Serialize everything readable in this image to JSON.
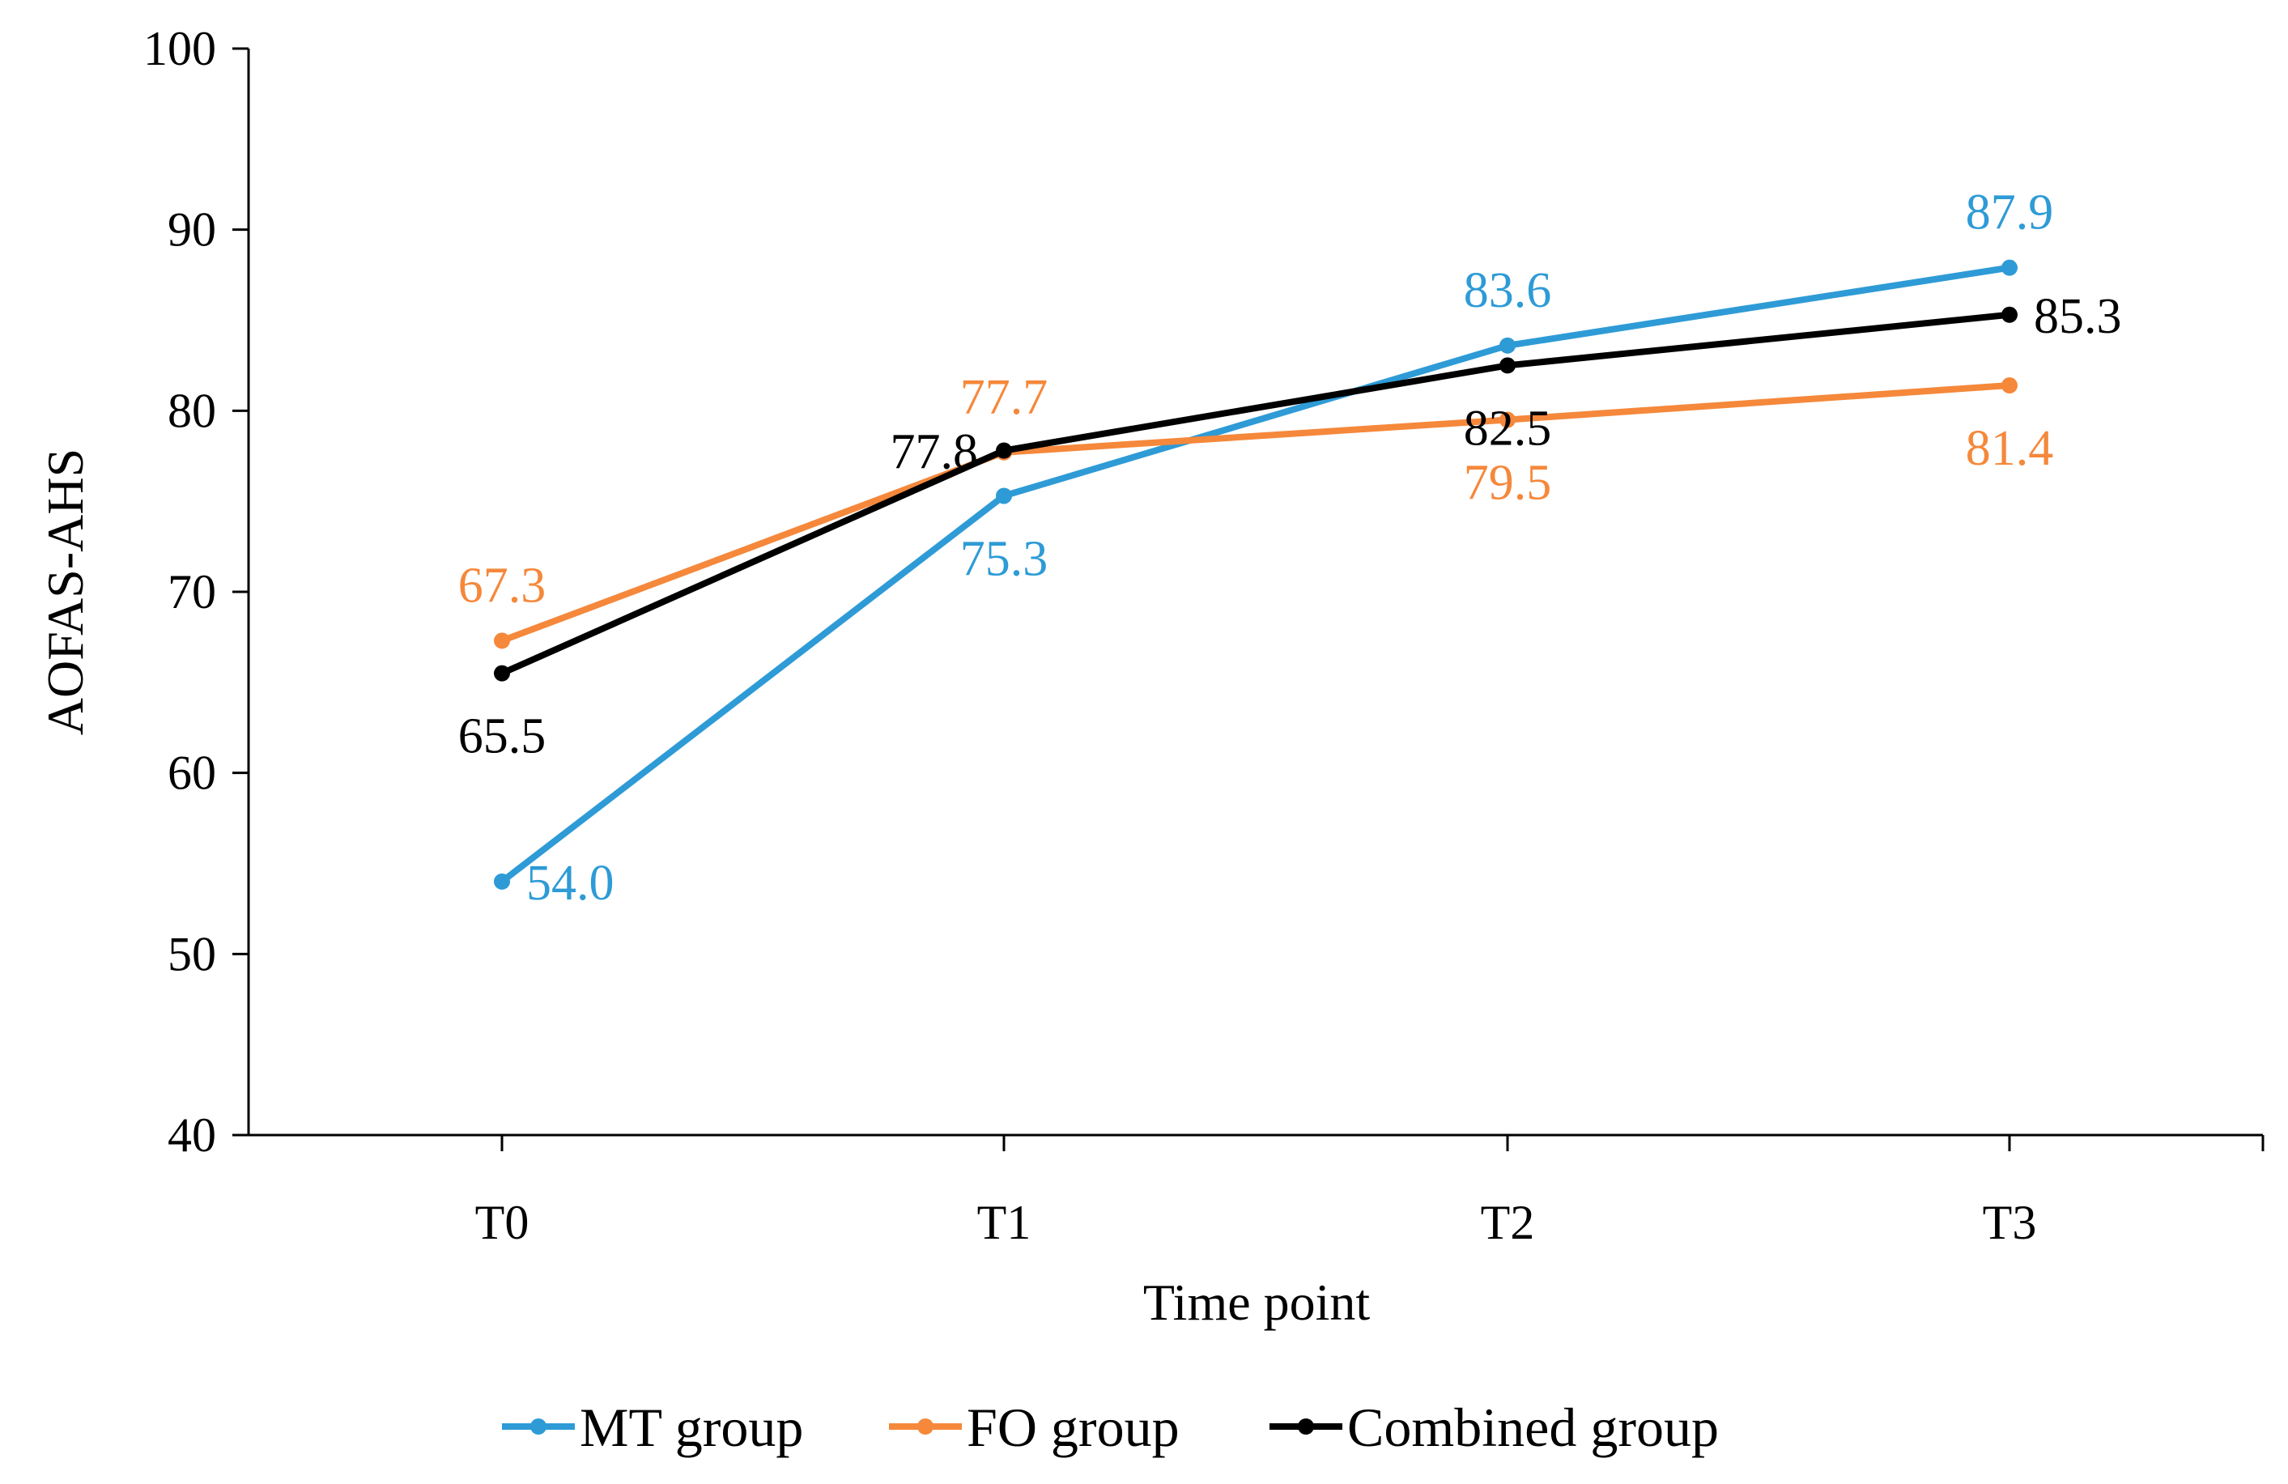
{
  "chart_data": {
    "type": "line",
    "title": "",
    "xlabel": "Time point",
    "ylabel": "AOFAS-AHS",
    "categories": [
      "T0",
      "T1",
      "T2",
      "T3"
    ],
    "ylim": [
      40,
      100
    ],
    "yticks": [
      40,
      50,
      60,
      70,
      80,
      90,
      100
    ],
    "ytick_labels": [
      "40",
      "50",
      "60",
      "70",
      "80",
      "90",
      "100"
    ],
    "grid": false,
    "legend_position": "bottom",
    "series": [
      {
        "name": "MT group",
        "color": "#2e9bd6",
        "values": [
          54.0,
          75.3,
          83.6,
          87.9
        ],
        "labels": [
          "54.0",
          "75.3",
          "83.6",
          "87.9"
        ],
        "label_placement": [
          "right",
          "below",
          "above",
          "above"
        ]
      },
      {
        "name": "FO group",
        "color": "#f5883b",
        "values": [
          67.3,
          77.7,
          79.5,
          81.4
        ],
        "labels": [
          "67.3",
          "77.7",
          "79.5",
          "81.4"
        ],
        "label_placement": [
          "above",
          "above",
          "below",
          "below"
        ]
      },
      {
        "name": "Combined group",
        "color": "#000000",
        "values": [
          65.5,
          77.8,
          82.5,
          85.3
        ],
        "labels": [
          "65.5",
          "77.8",
          "82.5",
          "85.3"
        ],
        "label_placement": [
          "below",
          "left",
          "below",
          "right"
        ]
      }
    ]
  }
}
